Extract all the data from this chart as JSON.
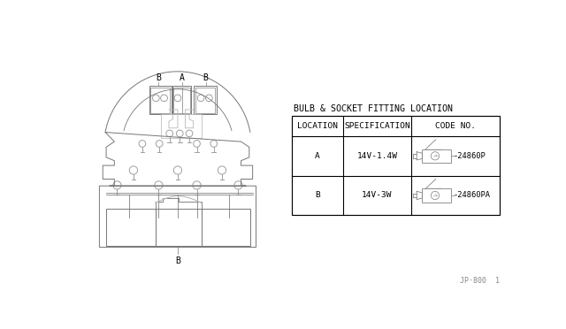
{
  "bg_color": "#ffffff",
  "line_color": "#aaaaaa",
  "dark_line": "#777777",
  "title": "BULB & SOCKET FITTING LOCATION",
  "table_headers": [
    "LOCATION",
    "SPECIFICATION",
    "CODE NO."
  ],
  "table_rows": [
    [
      "A",
      "14V-1.4W",
      "24860P"
    ],
    [
      "B",
      "14V-3W",
      "24860PA"
    ]
  ],
  "footer_label": "JP·800  1",
  "title_fontsize": 7.2,
  "table_fontsize": 6.8,
  "diagram_color": "#999999",
  "connector_color": "#bbbbbb"
}
